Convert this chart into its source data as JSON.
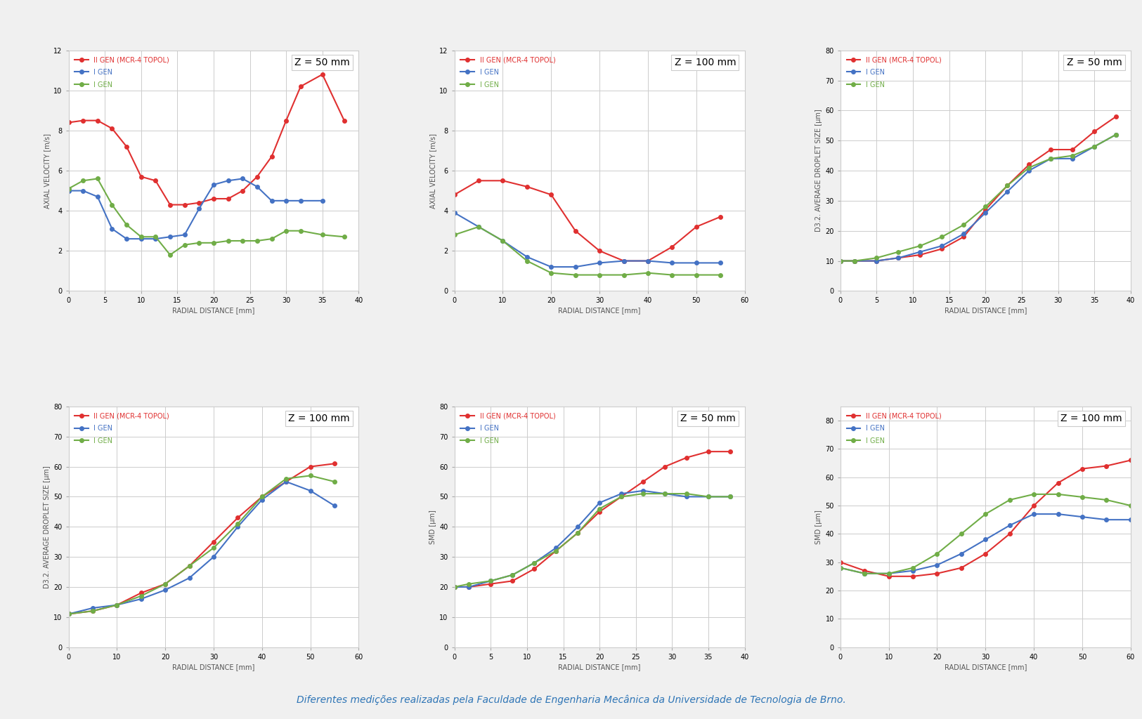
{
  "background_color": "#f0f0f0",
  "title_color": "#2e75b6",
  "title_text": "Diferentes medições realizadas pela Faculdade de Engenharia Mecânica da Universidade de Tecnologia de Brno.",
  "subplot_bg": "#ffffff",
  "grid_color": "#cccccc",
  "legend_labels": [
    "II GEN (MCR-4 TOPOL)",
    "I GEN",
    "I GEN"
  ],
  "colors": [
    "#e03030",
    "#4472c4",
    "#70ad47"
  ],
  "plots": [
    {
      "title": "Z = 50 mm",
      "xlabel": "RADIAL DISTANCE [mm]",
      "ylabel": "AXIAL VELOCITY [m/s]",
      "xlim": [
        0,
        40
      ],
      "ylim": [
        0,
        12
      ],
      "xticks": [
        0,
        5,
        10,
        15,
        20,
        25,
        30,
        35,
        40
      ],
      "yticks": [
        0,
        2,
        4,
        6,
        8,
        10,
        12
      ],
      "series": [
        {
          "x": [
            0,
            2,
            4,
            6,
            8,
            10,
            12,
            14,
            16,
            18,
            20,
            22,
            24,
            26,
            28,
            30,
            32,
            35,
            38
          ],
          "y": [
            8.4,
            8.5,
            8.5,
            8.1,
            7.2,
            5.7,
            5.5,
            4.3,
            4.3,
            4.4,
            4.6,
            4.6,
            5.0,
            5.7,
            6.7,
            8.5,
            10.2,
            10.8,
            8.5
          ]
        },
        {
          "x": [
            0,
            2,
            4,
            6,
            8,
            10,
            12,
            14,
            16,
            18,
            20,
            22,
            24,
            26,
            28,
            30,
            32,
            35
          ],
          "y": [
            5.0,
            5.0,
            4.7,
            3.1,
            2.6,
            2.6,
            2.6,
            2.7,
            2.8,
            4.1,
            5.3,
            5.5,
            5.6,
            5.2,
            4.5,
            4.5,
            4.5,
            4.5
          ]
        },
        {
          "x": [
            0,
            2,
            4,
            6,
            8,
            10,
            12,
            14,
            16,
            18,
            20,
            22,
            24,
            26,
            28,
            30,
            32,
            35,
            38
          ],
          "y": [
            5.1,
            5.5,
            5.6,
            4.3,
            3.3,
            2.7,
            2.7,
            1.8,
            2.3,
            2.4,
            2.4,
            2.5,
            2.5,
            2.5,
            2.6,
            3.0,
            3.0,
            2.8,
            2.7
          ]
        }
      ]
    },
    {
      "title": "Z = 100 mm",
      "xlabel": "RADIAL DISTANCE [mm]",
      "ylabel": "AXIAL VELOCITY [m/s]",
      "xlim": [
        0,
        60
      ],
      "ylim": [
        0,
        12
      ],
      "xticks": [
        0,
        10,
        20,
        30,
        40,
        50,
        60
      ],
      "yticks": [
        0,
        2,
        4,
        6,
        8,
        10,
        12
      ],
      "series": [
        {
          "x": [
            0,
            5,
            10,
            15,
            20,
            25,
            30,
            35,
            40,
            45,
            50,
            55
          ],
          "y": [
            4.8,
            5.5,
            5.5,
            5.2,
            4.8,
            3.0,
            2.0,
            1.5,
            1.5,
            2.2,
            3.2,
            3.7
          ]
        },
        {
          "x": [
            0,
            5,
            10,
            15,
            20,
            25,
            30,
            35,
            40,
            45,
            50,
            55
          ],
          "y": [
            3.9,
            3.2,
            2.5,
            1.7,
            1.2,
            1.2,
            1.4,
            1.5,
            1.5,
            1.4,
            1.4,
            1.4
          ]
        },
        {
          "x": [
            0,
            5,
            10,
            15,
            20,
            25,
            30,
            35,
            40,
            45,
            50,
            55
          ],
          "y": [
            2.8,
            3.2,
            2.5,
            1.5,
            0.9,
            0.8,
            0.8,
            0.8,
            0.9,
            0.8,
            0.8,
            0.8
          ]
        }
      ]
    },
    {
      "title": "Z = 50 mm",
      "xlabel": "RADIAL DISTANCE [mm]",
      "ylabel": "D3.2. AVERAGE DROPLET SIZE [μm]",
      "xlim": [
        0,
        40
      ],
      "ylim": [
        0,
        80
      ],
      "xticks": [
        0,
        5,
        10,
        15,
        20,
        25,
        30,
        35,
        40
      ],
      "yticks": [
        0,
        10,
        20,
        30,
        40,
        50,
        60,
        70,
        80
      ],
      "series": [
        {
          "x": [
            0,
            2,
            5,
            8,
            11,
            14,
            17,
            20,
            23,
            26,
            29,
            32,
            35,
            38
          ],
          "y": [
            10,
            10,
            10,
            11,
            12,
            14,
            18,
            27,
            35,
            42,
            47,
            47,
            53,
            58
          ]
        },
        {
          "x": [
            0,
            2,
            5,
            8,
            11,
            14,
            17,
            20,
            23,
            26,
            29,
            32,
            35,
            38
          ],
          "y": [
            10,
            10,
            10,
            11,
            13,
            15,
            19,
            26,
            33,
            40,
            44,
            44,
            48,
            52
          ]
        },
        {
          "x": [
            0,
            2,
            5,
            8,
            11,
            14,
            17,
            20,
            23,
            26,
            29,
            32,
            35,
            38
          ],
          "y": [
            10,
            10,
            11,
            13,
            15,
            18,
            22,
            28,
            35,
            41,
            44,
            45,
            48,
            52
          ]
        }
      ]
    },
    {
      "title": "Z = 100 mm",
      "xlabel": "RADIAL DISTANCE [mm]",
      "ylabel": "D3.2. AVERAGE DROPLET SIZE [μm]",
      "xlim": [
        0,
        60
      ],
      "ylim": [
        0,
        80
      ],
      "xticks": [
        0,
        10,
        20,
        30,
        40,
        50,
        60
      ],
      "yticks": [
        0,
        10,
        20,
        30,
        40,
        50,
        60,
        70,
        80
      ],
      "series": [
        {
          "x": [
            0,
            5,
            10,
            15,
            20,
            25,
            30,
            35,
            40,
            45,
            50,
            55
          ],
          "y": [
            11,
            12,
            14,
            18,
            21,
            27,
            35,
            43,
            50,
            55,
            60,
            61
          ]
        },
        {
          "x": [
            0,
            5,
            10,
            15,
            20,
            25,
            30,
            35,
            40,
            45,
            50,
            55
          ],
          "y": [
            11,
            13,
            14,
            16,
            19,
            23,
            30,
            40,
            49,
            55,
            52,
            47
          ]
        },
        {
          "x": [
            0,
            5,
            10,
            15,
            20,
            25,
            30,
            35,
            40,
            45,
            50,
            55
          ],
          "y": [
            11,
            12,
            14,
            17,
            21,
            27,
            33,
            41,
            50,
            56,
            57,
            55
          ]
        }
      ]
    },
    {
      "title": "Z = 50 mm",
      "xlabel": "RADIAL DISTANCE [mm]",
      "ylabel": "SMD [μm]",
      "xlim": [
        0,
        40
      ],
      "ylim": [
        0,
        80
      ],
      "xticks": [
        0,
        5,
        10,
        15,
        20,
        25,
        30,
        35,
        40
      ],
      "yticks": [
        0,
        10,
        20,
        30,
        40,
        50,
        60,
        70,
        80
      ],
      "series": [
        {
          "x": [
            0,
            2,
            5,
            8,
            11,
            14,
            17,
            20,
            23,
            26,
            29,
            32,
            35,
            38
          ],
          "y": [
            20,
            20,
            21,
            22,
            26,
            32,
            38,
            45,
            50,
            55,
            60,
            63,
            65,
            65
          ]
        },
        {
          "x": [
            0,
            2,
            5,
            8,
            11,
            14,
            17,
            20,
            23,
            26,
            29,
            32,
            35,
            38
          ],
          "y": [
            20,
            20,
            22,
            24,
            28,
            33,
            40,
            48,
            51,
            52,
            51,
            50,
            50,
            50
          ]
        },
        {
          "x": [
            0,
            2,
            5,
            8,
            11,
            14,
            17,
            20,
            23,
            26,
            29,
            32,
            35,
            38
          ],
          "y": [
            20,
            21,
            22,
            24,
            28,
            32,
            38,
            46,
            50,
            51,
            51,
            51,
            50,
            50
          ]
        }
      ]
    },
    {
      "title": "Z = 100 mm",
      "xlabel": "RADIAL DISTANCE [mm]",
      "ylabel": "SMD [μm]",
      "xlim": [
        0,
        60
      ],
      "ylim": [
        0,
        85
      ],
      "xticks": [
        0,
        10,
        20,
        30,
        40,
        50,
        60
      ],
      "yticks": [
        0,
        10,
        20,
        30,
        40,
        50,
        60,
        70,
        80
      ],
      "series": [
        {
          "x": [
            0,
            5,
            10,
            15,
            20,
            25,
            30,
            35,
            40,
            45,
            50,
            55,
            60
          ],
          "y": [
            30,
            27,
            25,
            25,
            26,
            28,
            33,
            40,
            50,
            58,
            63,
            64,
            66
          ]
        },
        {
          "x": [
            0,
            5,
            10,
            15,
            20,
            25,
            30,
            35,
            40,
            45,
            50,
            55,
            60
          ],
          "y": [
            28,
            26,
            26,
            27,
            29,
            33,
            38,
            43,
            47,
            47,
            46,
            45,
            45
          ]
        },
        {
          "x": [
            0,
            5,
            10,
            15,
            20,
            25,
            30,
            35,
            40,
            45,
            50,
            55,
            60
          ],
          "y": [
            28,
            26,
            26,
            28,
            33,
            40,
            47,
            52,
            54,
            54,
            53,
            52,
            50
          ]
        }
      ]
    }
  ]
}
